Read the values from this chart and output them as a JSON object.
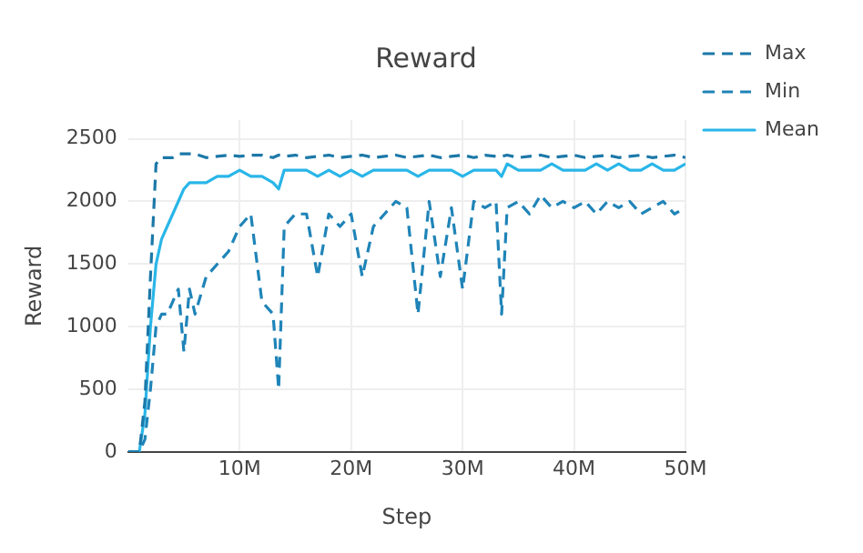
{
  "chart_data": {
    "type": "line",
    "title": "Reward",
    "xlabel": "Step",
    "ylabel": "Reward",
    "x": [
      0,
      1000000,
      1500000,
      2000000,
      2500000,
      3000000,
      3500000,
      4000000,
      4500000,
      5000000,
      5500000,
      6000000,
      7000000,
      8000000,
      9000000,
      10000000,
      11000000,
      12000000,
      13000000,
      13500000,
      14000000,
      15000000,
      16000000,
      17000000,
      18000000,
      19000000,
      20000000,
      21000000,
      22000000,
      23000000,
      24000000,
      25000000,
      26000000,
      27000000,
      28000000,
      29000000,
      30000000,
      31000000,
      32000000,
      33000000,
      33500000,
      34000000,
      35000000,
      36000000,
      37000000,
      38000000,
      39000000,
      40000000,
      41000000,
      42000000,
      43000000,
      44000000,
      45000000,
      46000000,
      47000000,
      48000000,
      49000000,
      50000000
    ],
    "series": [
      {
        "name": "Max",
        "color": "#1c78a8",
        "line_style": "dashed",
        "values": [
          0,
          0,
          400,
          1400,
          2300,
          2350,
          2350,
          2350,
          2380,
          2380,
          2380,
          2380,
          2350,
          2360,
          2370,
          2360,
          2370,
          2370,
          2350,
          2370,
          2360,
          2370,
          2350,
          2360,
          2370,
          2350,
          2360,
          2370,
          2350,
          2360,
          2370,
          2350,
          2360,
          2370,
          2350,
          2360,
          2370,
          2350,
          2370,
          2360,
          2360,
          2370,
          2350,
          2360,
          2370,
          2350,
          2360,
          2370,
          2350,
          2360,
          2370,
          2350,
          2360,
          2370,
          2350,
          2360,
          2370,
          2350
        ]
      },
      {
        "name": "Min",
        "color": "#1f84b8",
        "line_style": "dashed",
        "values": [
          0,
          0,
          100,
          500,
          1000,
          1100,
          1100,
          1200,
          1300,
          800,
          1300,
          1100,
          1400,
          1500,
          1600,
          1800,
          1900,
          1200,
          1100,
          500,
          1800,
          1900,
          1900,
          1400,
          1900,
          1800,
          1900,
          1400,
          1800,
          1900,
          2000,
          1950,
          1100,
          2000,
          1400,
          1950,
          1300,
          2000,
          1950,
          2000,
          1100,
          1950,
          2000,
          1900,
          2050,
          1950,
          2000,
          1950,
          2000,
          1900,
          2000,
          1950,
          2000,
          1900,
          1950,
          2000,
          1900,
          1950
        ]
      },
      {
        "name": "Mean",
        "color": "#29b6e8",
        "line_style": "solid",
        "values": [
          0,
          0,
          300,
          1000,
          1500,
          1700,
          1800,
          1900,
          2000,
          2100,
          2150,
          2150,
          2150,
          2200,
          2200,
          2250,
          2200,
          2200,
          2150,
          2100,
          2250,
          2250,
          2250,
          2200,
          2250,
          2200,
          2250,
          2200,
          2250,
          2250,
          2250,
          2250,
          2200,
          2250,
          2250,
          2250,
          2200,
          2250,
          2250,
          2250,
          2200,
          2300,
          2250,
          2250,
          2250,
          2300,
          2250,
          2250,
          2250,
          2300,
          2250,
          2300,
          2250,
          2250,
          2300,
          2250,
          2250,
          2300
        ]
      }
    ],
    "xlim": [
      0,
      50000000
    ],
    "xticks": [
      {
        "value": 10000000,
        "label": "10M"
      },
      {
        "value": 20000000,
        "label": "20M"
      },
      {
        "value": 30000000,
        "label": "30M"
      },
      {
        "value": 40000000,
        "label": "40M"
      },
      {
        "value": 50000000,
        "label": "50M"
      }
    ],
    "ylim": [
      0,
      2650
    ],
    "yticks": [
      0,
      500,
      1000,
      1500,
      2000,
      2500
    ],
    "grid": true,
    "legend": "top right",
    "marker": "none"
  }
}
